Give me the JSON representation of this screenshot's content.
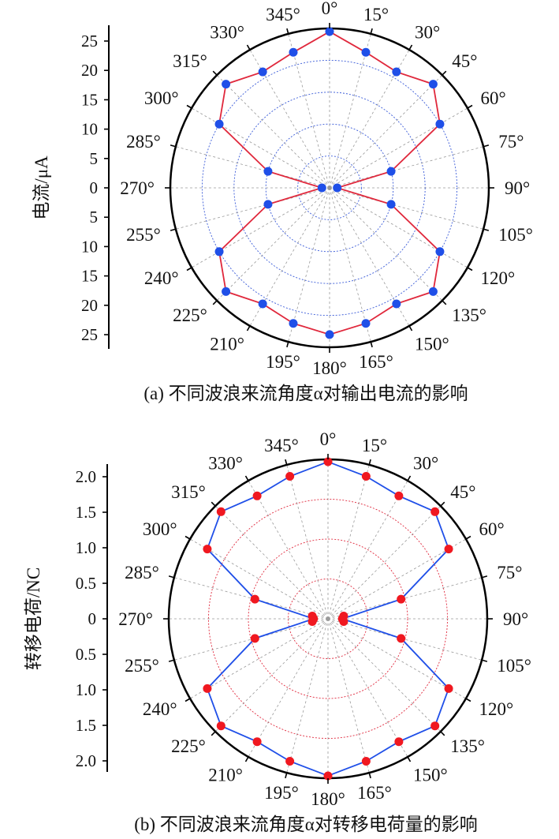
{
  "chart_data": [
    {
      "type": "polar",
      "caption": "(a) 不同波浪来流角度α对输出电流的影响",
      "ylabel": "电流/μA",
      "radial_ticks_upper": [
        "25",
        "20",
        "15",
        "10",
        "5",
        "0"
      ],
      "radial_ticks_lower": [
        "5",
        "10",
        "15",
        "20",
        "25"
      ],
      "radial_range": [
        0,
        25
      ],
      "radial_step": 5,
      "angle_labels": [
        "0°",
        "15°",
        "30°",
        "45°",
        "60°",
        "75°",
        "90°",
        "105°",
        "120°",
        "135°",
        "150°",
        "165°",
        "180°",
        "195°",
        "210°",
        "225°",
        "240°",
        "255°",
        "270°",
        "285°",
        "300°",
        "315°",
        "330°",
        "345°"
      ],
      "angles_deg": [
        0,
        15,
        30,
        45,
        60,
        75,
        90,
        105,
        120,
        135,
        150,
        165,
        180,
        195,
        210,
        225,
        240,
        255,
        270,
        285,
        300,
        315,
        330,
        345
      ],
      "values": [
        24.5,
        22.0,
        21.0,
        23.0,
        20.0,
        10.0,
        1.2,
        10.0,
        20.0,
        23.0,
        21.0,
        22.0,
        23.0,
        22.0,
        21.0,
        23.0,
        20.0,
        10.0,
        1.2,
        10.0,
        20.0,
        23.0,
        21.0,
        22.0
      ],
      "line_color": "#e0283c",
      "marker_color": "#1f4fe8",
      "grid_color": "#3a5bd8"
    },
    {
      "type": "polar",
      "caption": "(b) 不同波浪来流角度α对转移电荷量的影响",
      "ylabel": "转移电荷/NC",
      "radial_ticks_upper": [
        "2.0",
        "1.5",
        "1.0",
        "0.5",
        "0"
      ],
      "radial_ticks_lower": [
        "0.5",
        "1.0",
        "1.5",
        "2.0"
      ],
      "radial_range": [
        0,
        2.0
      ],
      "radial_step": 0.5,
      "angle_labels": [
        "0°",
        "15°",
        "30°",
        "45°",
        "60°",
        "75°",
        "90°",
        "105°",
        "120°",
        "135°",
        "150°",
        "165°",
        "180°",
        "195°",
        "210°",
        "225°",
        "240°",
        "255°",
        "270°",
        "285°",
        "300°",
        "315°",
        "330°",
        "345°"
      ],
      "angles_deg": [
        0,
        15,
        30,
        45,
        60,
        75,
        90,
        105,
        120,
        135,
        150,
        165,
        180,
        195,
        210,
        225,
        240,
        255,
        270,
        285,
        300,
        315,
        330,
        345
      ],
      "values": [
        1.97,
        1.85,
        1.78,
        1.9,
        1.75,
        0.95,
        0.18,
        0.95,
        1.75,
        1.9,
        1.78,
        1.85,
        1.97,
        1.85,
        1.78,
        1.9,
        1.75,
        0.95,
        0.18,
        0.95,
        1.75,
        1.9,
        1.78,
        1.85
      ],
      "extra_points_near_center": [
        0.2,
        0.2,
        0.2,
        0.2
      ],
      "line_color": "#1f4fe8",
      "marker_color": "#f01820",
      "grid_color": "#e0283c"
    }
  ]
}
